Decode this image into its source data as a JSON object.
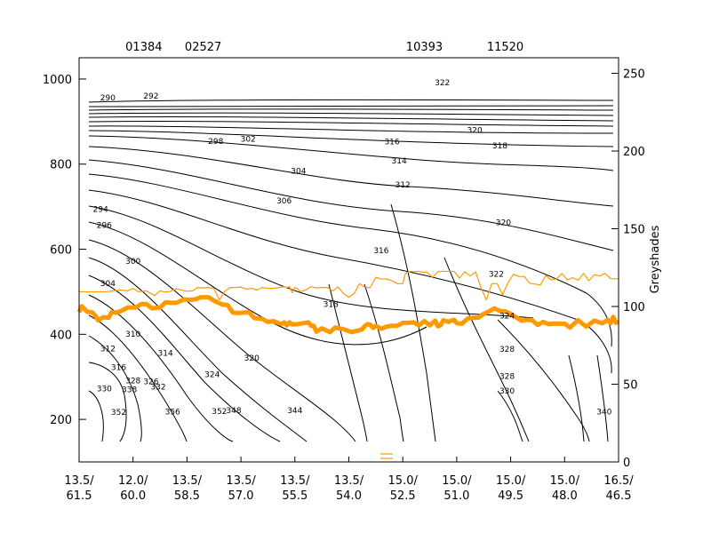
{
  "chart_data": {
    "type": "contour",
    "title": "",
    "top_station_labels": [
      "01384",
      "02527",
      "10393",
      "11520"
    ],
    "x_tick_labels": [
      [
        "13.5/",
        "61.5"
      ],
      [
        "12.0/",
        "60.0"
      ],
      [
        "13.5/",
        "58.5"
      ],
      [
        "13.5/",
        "57.0"
      ],
      [
        "13.5/",
        "55.5"
      ],
      [
        "13.5/",
        "54.0"
      ],
      [
        "15.0/",
        "52.5"
      ],
      [
        "15.0/",
        "51.0"
      ],
      [
        "15.0/",
        "49.5"
      ],
      [
        "15.0/",
        "48.0"
      ],
      [
        "16.5/",
        "46.5"
      ]
    ],
    "y_left": {
      "ticks": [
        200,
        400,
        600,
        800,
        1000
      ],
      "range": [
        1050,
        100
      ]
    },
    "y_right": {
      "label": "Greyshades",
      "ticks": [
        0,
        50,
        100,
        150,
        200,
        250
      ],
      "range": [
        0,
        260
      ]
    },
    "contour_labels": [
      {
        "text": "352",
        "x": 1.1,
        "y": 217
      },
      {
        "text": "356",
        "x": 2.6,
        "y": 218
      },
      {
        "text": "352",
        "x": 3.9,
        "y": 219
      },
      {
        "text": "348",
        "x": 4.3,
        "y": 221
      },
      {
        "text": "344",
        "x": 6.0,
        "y": 221
      },
      {
        "text": "340",
        "x": 14.6,
        "y": 218
      },
      {
        "text": "330",
        "x": 0.7,
        "y": 272
      },
      {
        "text": "338",
        "x": 1.4,
        "y": 270
      },
      {
        "text": "332",
        "x": 2.2,
        "y": 276
      },
      {
        "text": "326",
        "x": 2.0,
        "y": 289
      },
      {
        "text": "328",
        "x": 1.5,
        "y": 291
      },
      {
        "text": "316",
        "x": 1.1,
        "y": 322
      },
      {
        "text": "324",
        "x": 3.7,
        "y": 306
      },
      {
        "text": "320",
        "x": 4.8,
        "y": 344
      },
      {
        "text": "314",
        "x": 2.4,
        "y": 356
      },
      {
        "text": "312",
        "x": 0.8,
        "y": 366
      },
      {
        "text": "310",
        "x": 1.5,
        "y": 401
      },
      {
        "text": "318",
        "x": 7.0,
        "y": 471
      },
      {
        "text": "304",
        "x": 0.8,
        "y": 520
      },
      {
        "text": "300",
        "x": 1.5,
        "y": 572
      },
      {
        "text": "296",
        "x": 0.7,
        "y": 656
      },
      {
        "text": "294",
        "x": 0.6,
        "y": 694
      },
      {
        "text": "306",
        "x": 5.7,
        "y": 714
      },
      {
        "text": "304",
        "x": 6.1,
        "y": 784
      },
      {
        "text": "312",
        "x": 9.0,
        "y": 751
      },
      {
        "text": "314",
        "x": 8.9,
        "y": 808
      },
      {
        "text": "316",
        "x": 8.7,
        "y": 853
      },
      {
        "text": "298",
        "x": 3.8,
        "y": 854
      },
      {
        "text": "302",
        "x": 4.7,
        "y": 859
      },
      {
        "text": "320",
        "x": 11.0,
        "y": 880
      },
      {
        "text": "318",
        "x": 11.7,
        "y": 843
      },
      {
        "text": "322",
        "x": 10.1,
        "y": 992
      },
      {
        "text": "290",
        "x": 0.8,
        "y": 956
      },
      {
        "text": "292",
        "x": 2.0,
        "y": 960
      },
      {
        "text": "322",
        "x": 11.6,
        "y": 542
      },
      {
        "text": "324",
        "x": 11.9,
        "y": 443
      },
      {
        "text": "328",
        "x": 11.9,
        "y": 365
      },
      {
        "text": "328",
        "x": 11.9,
        "y": 302
      },
      {
        "text": "330",
        "x": 11.9,
        "y": 267
      },
      {
        "text": "316",
        "x": 8.4,
        "y": 597
      },
      {
        "text": "320",
        "x": 11.8,
        "y": 663
      }
    ],
    "series": [
      {
        "name": "",
        "color": "#ff9900",
        "x": [
          0,
          0.1,
          0.3,
          0.5,
          0.6,
          0.7,
          0.9,
          1.1,
          1.2,
          1.4,
          1.6,
          1.8,
          2.1,
          2.3,
          2.5,
          2.7,
          3.0,
          3.2,
          3.4,
          3.6,
          3.9,
          4.1,
          4.3,
          4.5,
          4.8,
          5.0,
          5.3,
          5.5,
          5.7,
          5.9,
          6.1,
          6.3,
          6.5,
          6.8,
          7.0,
          7.2,
          7.5,
          7.6,
          7.7,
          7.8,
          7.9,
          8.1,
          8.4,
          8.5,
          8.6,
          8.7,
          8.8,
          9.0,
          9.3,
          9.5,
          9.8,
          10.1,
          10.3,
          10.5,
          10.6,
          10.7,
          10.8,
          10.9,
          11.0,
          11.2,
          11.4,
          11.6,
          11.8,
          12.0,
          12.2,
          12.4,
          12.6,
          12.8,
          13.0,
          13.2,
          13.3,
          13.4,
          13.5,
          13.7,
          13.8,
          13.9,
          14.0,
          14.2,
          14.4,
          14.6,
          14.8,
          15.0,
          15.2,
          15.4,
          15.6,
          15.8,
          16.0,
          16.2,
          16.4,
          16.6,
          16.8,
          17.0,
          17.2,
          17.4,
          17.6,
          17.8,
          18.0,
          18.2,
          18.5,
          18.8,
          19.1,
          19.4,
          19.6,
          19.7,
          19.8,
          19.9,
          20.0
        ],
        "y": [
          452,
          466,
          453,
          451,
          444,
          433,
          440,
          439,
          452,
          451,
          456,
          463,
          463,
          471,
          471,
          461,
          463,
          475,
          474,
          474,
          482,
          481,
          482,
          487,
          487,
          479,
          470,
          469,
          451,
          450,
          451,
          452,
          438,
          436,
          429,
          431,
          424,
          428,
          421,
          428,
          423,
          424,
          427,
          428,
          420,
          420,
          406,
          414,
          405,
          416,
          412,
          405,
          408,
          412,
          420,
          424,
          422,
          415,
          420,
          413,
          418,
          420,
          420,
          427,
          427,
          428,
          421,
          431,
          421,
          432,
          419,
          421,
          433,
          429,
          432,
          434,
          426,
          425,
          437,
          439,
          439,
          448,
          454,
          461,
          455,
          454,
          448,
          440,
          432,
          434,
          433,
          422,
          429,
          424,
          425,
          425,
          425,
          416,
          433,
          418,
          432,
          426,
          434,
          426,
          441,
          427,
          430
        ]
      },
      {
        "name": "",
        "color": "#ff9900",
        "x": [
          0,
          0.5,
          1.0,
          1.5,
          1.8,
          2.0,
          2.2,
          2.5,
          2.8,
          3.0,
          3.2,
          3.4,
          3.6,
          3.8,
          4.0,
          4.2,
          4.4,
          4.6,
          4.8,
          5.0,
          5.2,
          5.4,
          5.6,
          5.8,
          6.0,
          6.2,
          6.4,
          6.6,
          6.8,
          7.0,
          7.2,
          7.4,
          7.6,
          7.7,
          7.8,
          7.9,
          8.0,
          8.1,
          8.2,
          8.4,
          8.6,
          8.8,
          9.0,
          9.2,
          9.4,
          9.6,
          9.8,
          10.0,
          10.2,
          10.4,
          10.6,
          10.8,
          11.0,
          11.2,
          11.4,
          11.6,
          11.8,
          12.0,
          12.1,
          12.2,
          12.3,
          12.4,
          12.5,
          12.6,
          12.7,
          12.9,
          13.1,
          13.3,
          13.5,
          13.7,
          13.9,
          14.1,
          14.3,
          14.5,
          14.7,
          14.9,
          15.1,
          15.3,
          15.5,
          15.7,
          15.9,
          16.1,
          16.3,
          16.5,
          16.7,
          16.9,
          17.1,
          17.3,
          17.5,
          17.7,
          17.9,
          18.1,
          18.3,
          18.5,
          18.7,
          18.9,
          19.1,
          19.3,
          19.5,
          19.7,
          20.0
        ],
        "y": [
          500,
          500,
          500,
          504,
          502,
          508,
          500,
          502,
          491,
          502,
          499,
          501,
          507,
          504,
          501,
          502,
          510,
          509,
          510,
          508,
          481,
          501,
          510,
          510,
          511,
          506,
          508,
          504,
          510,
          508,
          508,
          510,
          512,
          510,
          512,
          498,
          510,
          507,
          500,
          504,
          512,
          509,
          510,
          510,
          502,
          511,
          496,
          487,
          496,
          519,
          510,
          510,
          534,
          530,
          530,
          526,
          519,
          519,
          543,
          546,
          548,
          547,
          548,
          548,
          546,
          546,
          534,
          547,
          548,
          548,
          548,
          532,
          547,
          537,
          547,
          509,
          481,
          519,
          519,
          493,
          521,
          541,
          536,
          536,
          520,
          518,
          516,
          538,
          528,
          530,
          543,
          528,
          533,
          527,
          543,
          526,
          540,
          537,
          543,
          531,
          530
        ]
      }
    ]
  }
}
